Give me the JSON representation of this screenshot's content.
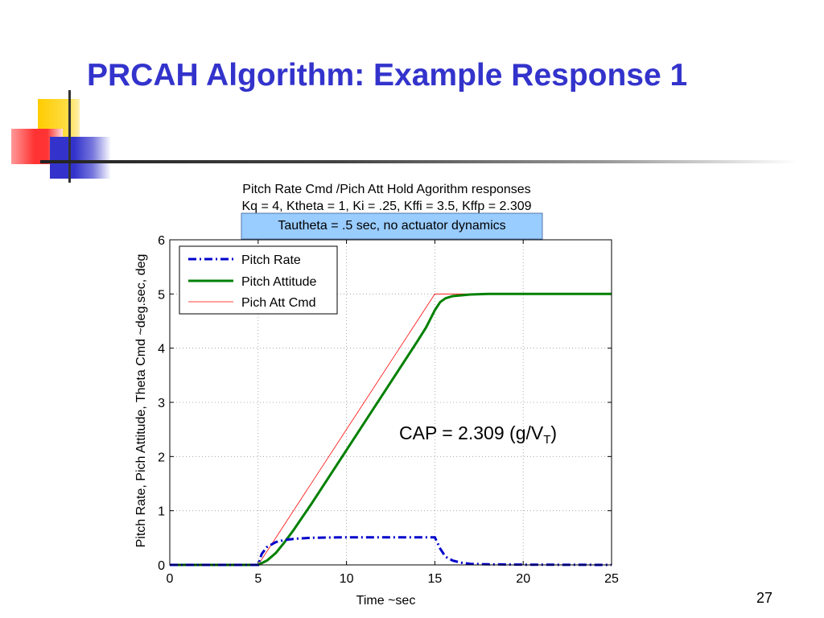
{
  "slide": {
    "title": "PRCAH Algorithm: Example Response 1",
    "page_number": "27"
  },
  "colors": {
    "title": "#3333cc",
    "pitch_rate": "#0000cc",
    "pitch_attitude": "#008000",
    "pich_att_cmd": "#ff0000",
    "note_box": "#99ccff",
    "deco_yellow": "#ffcc00",
    "deco_red": "#ff3333",
    "deco_blue": "#3333cc"
  },
  "chart_data": {
    "type": "line",
    "title_lines": [
      "Pitch Rate Cmd /Pich Att Hold Agorithm responses",
      "Kq = 4, Ktheta = 1, Ki = .25, Kffi = 3.5, Kffp = 2.309"
    ],
    "note_box": "Tautheta = .5 sec, no actuator dynamics",
    "annotation": {
      "prefix": "CAP = 2.309 (g/V",
      "subscript": "T",
      "suffix": ")"
    },
    "xlabel": "Time ~sec",
    "ylabel": "Pitch Rate,  Pich Attitude, Theta Cmd ~deg.sec, deg",
    "xlim": [
      0,
      25
    ],
    "ylim": [
      0,
      6
    ],
    "xticks": [
      0,
      5,
      10,
      15,
      20,
      25
    ],
    "yticks": [
      0,
      1,
      2,
      3,
      4,
      5,
      6
    ],
    "grid": true,
    "legend_position": "top-left",
    "series": [
      {
        "name": "Pitch Rate",
        "style": "dash-dot",
        "points": [
          [
            0,
            0
          ],
          [
            5,
            0
          ],
          [
            5.2,
            0.2
          ],
          [
            5.5,
            0.33
          ],
          [
            6,
            0.42
          ],
          [
            6.5,
            0.46
          ],
          [
            7,
            0.48
          ],
          [
            8,
            0.5
          ],
          [
            10,
            0.51
          ],
          [
            12,
            0.51
          ],
          [
            14,
            0.51
          ],
          [
            15,
            0.51
          ],
          [
            15.3,
            0.3
          ],
          [
            15.6,
            0.15
          ],
          [
            16,
            0.08
          ],
          [
            16.5,
            0.04
          ],
          [
            17,
            0.02
          ],
          [
            18,
            0.01
          ],
          [
            20,
            0.005
          ],
          [
            25,
            0
          ]
        ]
      },
      {
        "name": "Pitch Attitude",
        "style": "solid",
        "points": [
          [
            0,
            0
          ],
          [
            5,
            0
          ],
          [
            5.5,
            0.08
          ],
          [
            6,
            0.22
          ],
          [
            6.5,
            0.42
          ],
          [
            7,
            0.64
          ],
          [
            8,
            1.12
          ],
          [
            10,
            2.12
          ],
          [
            12,
            3.12
          ],
          [
            14,
            4.12
          ],
          [
            14.5,
            4.38
          ],
          [
            15,
            4.7
          ],
          [
            15.3,
            4.85
          ],
          [
            15.6,
            4.92
          ],
          [
            16,
            4.96
          ],
          [
            17,
            4.99
          ],
          [
            18,
            5.0
          ],
          [
            25,
            5.0
          ]
        ]
      },
      {
        "name": "Pich Att Cmd",
        "style": "thin",
        "points": [
          [
            0,
            0
          ],
          [
            5,
            0
          ],
          [
            15,
            5
          ],
          [
            25,
            5
          ]
        ]
      }
    ]
  }
}
